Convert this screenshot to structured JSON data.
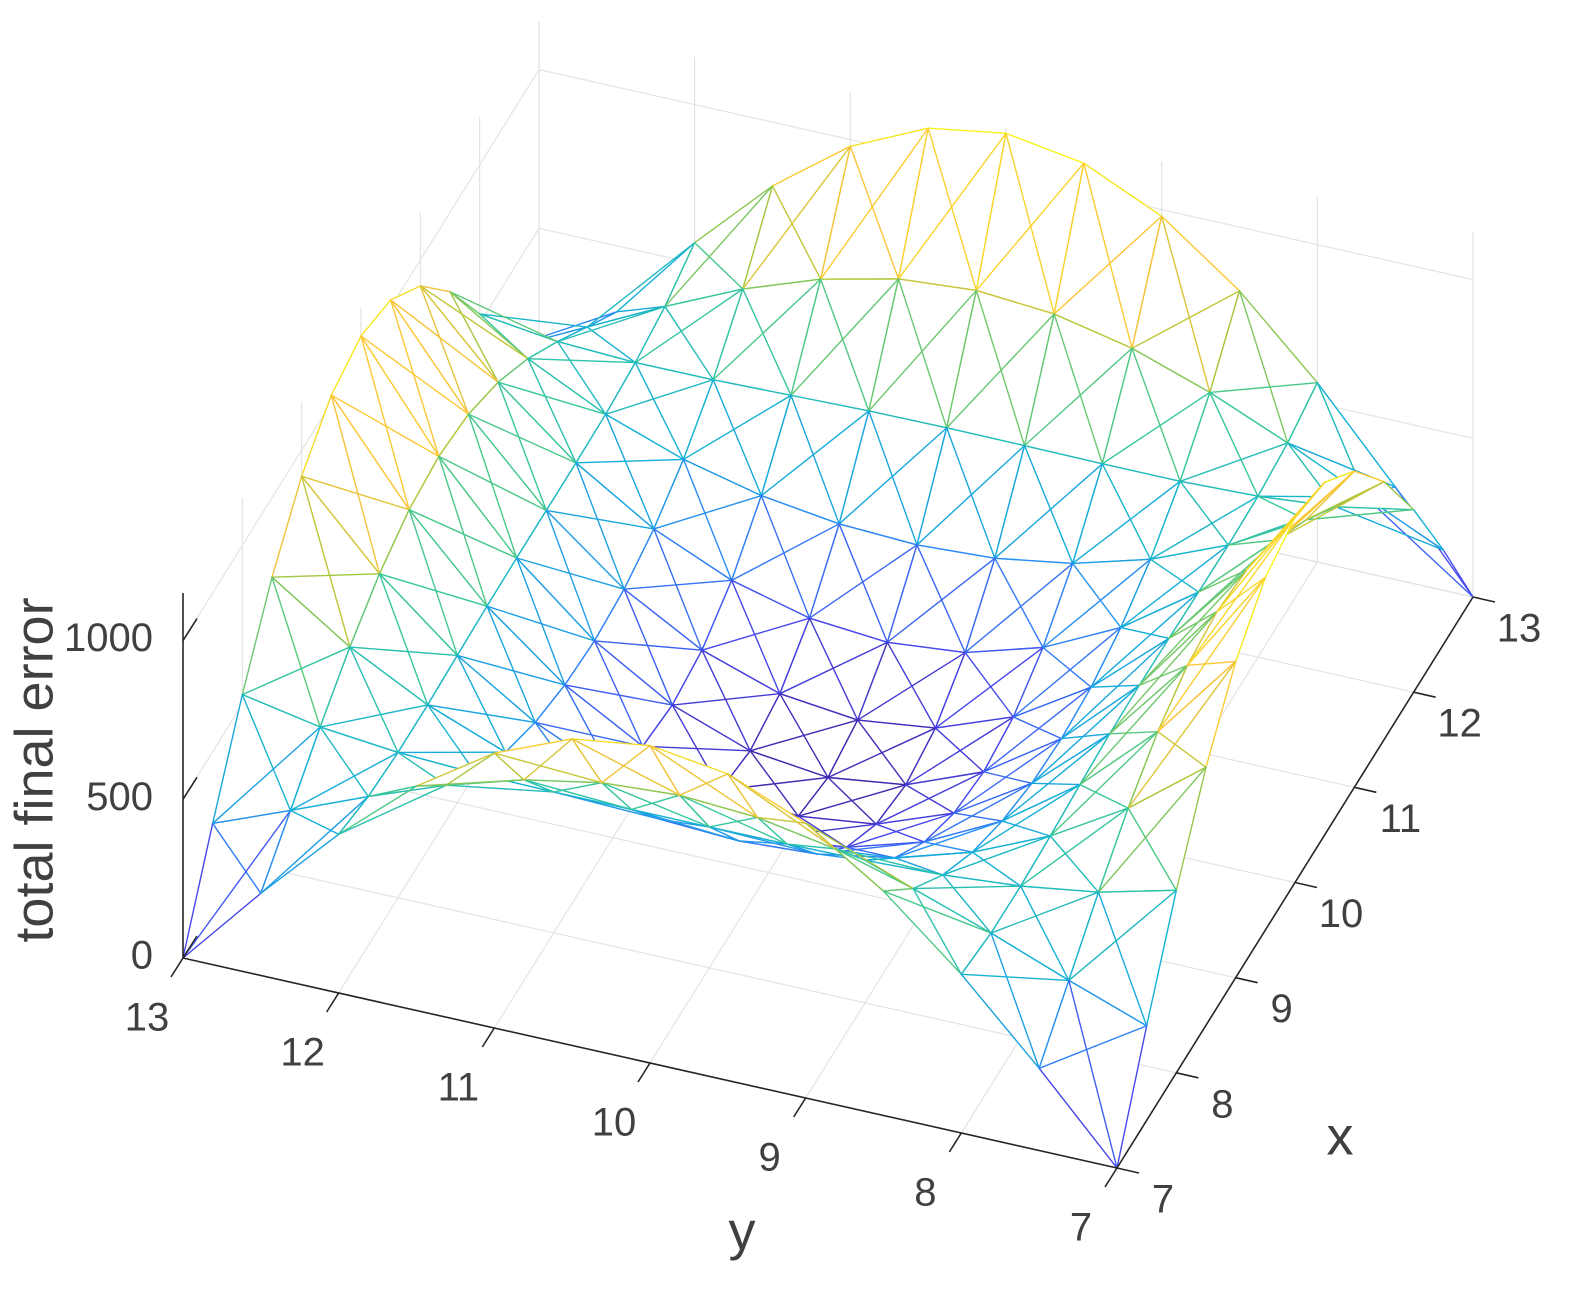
{
  "chart_data": {
    "type": "mesh3d",
    "x": [
      7,
      7.5,
      8,
      8.5,
      9,
      9.5,
      10,
      10.5,
      11,
      11.5,
      12,
      12.5,
      13
    ],
    "y": [
      7,
      7.5,
      8,
      8.5,
      9,
      9.5,
      10,
      10.5,
      11,
      11.5,
      12,
      12.5,
      13
    ],
    "z": [
      [
        0,
        259,
        500,
        707,
        866,
        966,
        1000,
        966,
        866,
        707,
        500,
        259,
        0
      ],
      [
        298,
        386,
        480,
        565,
        635,
        679,
        694,
        678,
        632,
        560,
        469,
        370,
        274
      ],
      [
        575,
        514,
        478,
        458,
        449,
        445,
        444,
        444,
        444,
        447,
        458,
        483,
        530
      ],
      [
        813,
        629,
        486,
        380,
        307,
        264,
        250,
        262,
        300,
        364,
        458,
        585,
        750
      ],
      [
        996,
        720,
        498,
        328,
        207,
        135,
        111,
        133,
        198,
        308,
        464,
        666,
        918
      ],
      [
        1111,
        779,
        508,
        297,
        148,
        58,
        28,
        55,
        138,
        276,
        469,
        718,
        1024
      ],
      [
        1150,
        799,
        511,
        288,
        128,
        32,
        0,
        29,
        118,
        265,
        471,
        736,
        1060
      ],
      [
        1111,
        780,
        509,
        300,
        151,
        61,
        31,
        59,
        141,
        278,
        471,
        719,
        1024
      ],
      [
        996,
        724,
        505,
        338,
        220,
        149,
        126,
        147,
        211,
        318,
        471,
        670,
        918
      ],
      [
        813,
        638,
        503,
        403,
        335,
        296,
        283,
        294,
        328,
        387,
        474,
        594,
        750
      ],
      [
        575,
        529,
        507,
        499,
        499,
        501,
        502,
        500,
        494,
        488,
        487,
        498,
        530
      ],
      [
        298,
        410,
        525,
        629,
        713,
        766,
        785,
        766,
        710,
        624,
        514,
        394,
        274
      ],
      [
        0,
        292,
        565,
        799,
        979,
        1091,
        1130,
        1091,
        979,
        799,
        565,
        292,
        0
      ]
    ],
    "xlabel": "x",
    "ylabel": "y",
    "zlabel": "total final error",
    "xlim": [
      7,
      13
    ],
    "ylim": [
      7,
      13
    ],
    "zlim": [
      0,
      1150
    ],
    "xticks": [
      7,
      8,
      9,
      10,
      11,
      12,
      13
    ],
    "yticks": [
      7,
      8,
      9,
      10,
      11,
      12,
      13
    ],
    "zticks": [
      0,
      500,
      1000
    ],
    "grid": true,
    "colormap": [
      "#3e26a8",
      "#4748f0",
      "#2d87f7",
      "#12b1d6",
      "#37c899",
      "#abc739",
      "#fec338",
      "#f5e024",
      "#f9fb15"
    ]
  }
}
